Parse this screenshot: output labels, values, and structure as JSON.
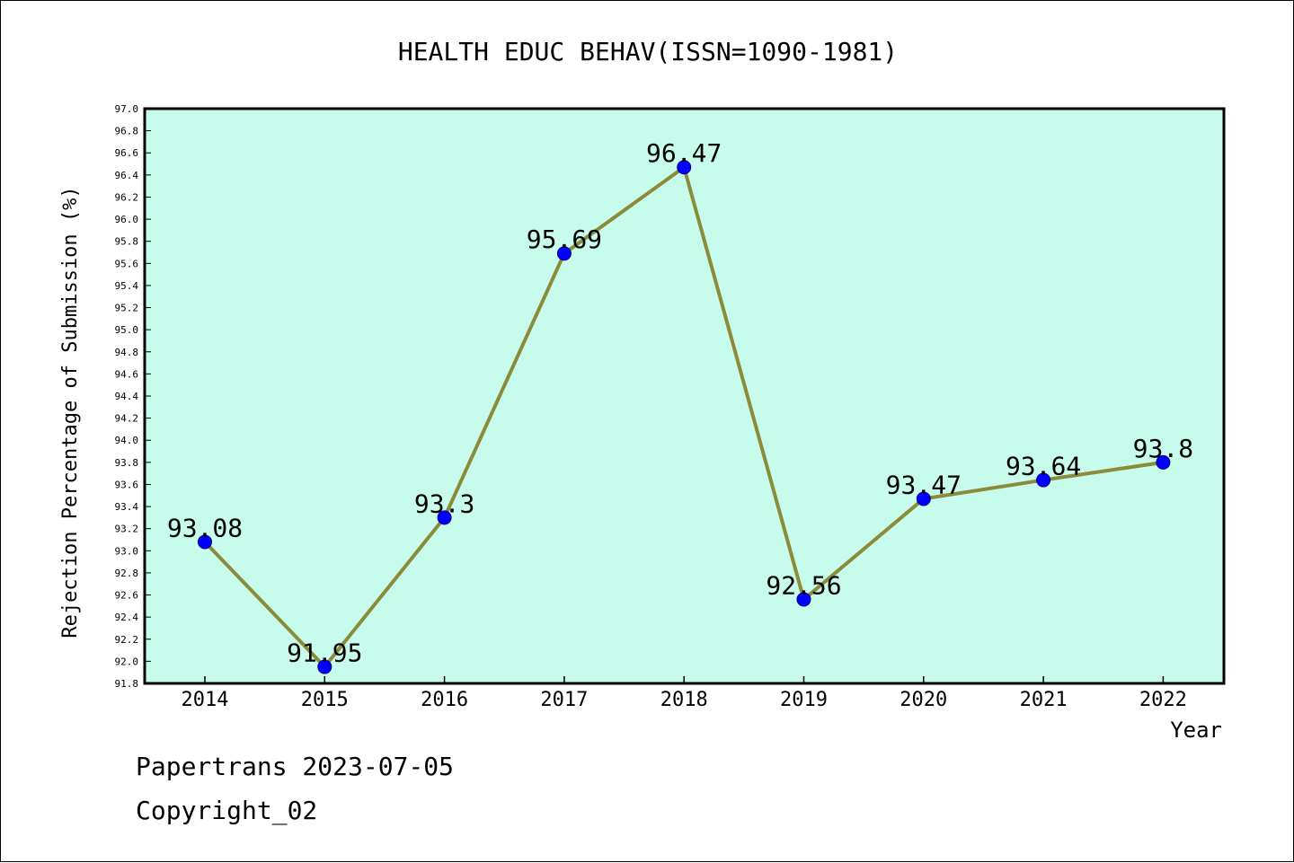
{
  "chart_data": {
    "type": "line",
    "title": "HEALTH EDUC BEHAV(ISSN=1090-1981)",
    "xlabel": "Year",
    "ylabel": "Rejection Percentage of Submission (%)",
    "categories": [
      "2014",
      "2015",
      "2016",
      "2017",
      "2018",
      "2019",
      "2020",
      "2021",
      "2022"
    ],
    "series": [
      {
        "values": [
          93.08,
          91.95,
          93.3,
          95.69,
          96.47,
          92.56,
          93.47,
          93.64,
          93.8
        ],
        "data_labels": [
          "93.08",
          "91.95",
          "93.3",
          "95.69",
          "96.47",
          "92.56",
          "93.47",
          "93.64",
          "93.8"
        ]
      }
    ],
    "ylim": [
      91.8,
      97.0
    ],
    "yticks": [
      "91.8",
      "92.0",
      "92.2",
      "92.4",
      "92.6",
      "92.8",
      "93.0",
      "93.2",
      "93.4",
      "93.6",
      "93.8",
      "94.0",
      "94.2",
      "94.4",
      "94.6",
      "94.8",
      "95.0",
      "95.2",
      "95.4",
      "95.6",
      "95.8",
      "96.0",
      "96.2",
      "96.4",
      "96.6",
      "96.8",
      "97.0"
    ],
    "grid": false,
    "colors": {
      "plot_background": "#c7fcec",
      "line": "#8b8b3a",
      "marker": "#0000ff"
    }
  },
  "footer": {
    "line1": "Papertrans 2023-07-05",
    "line2": "Copyright_02"
  }
}
